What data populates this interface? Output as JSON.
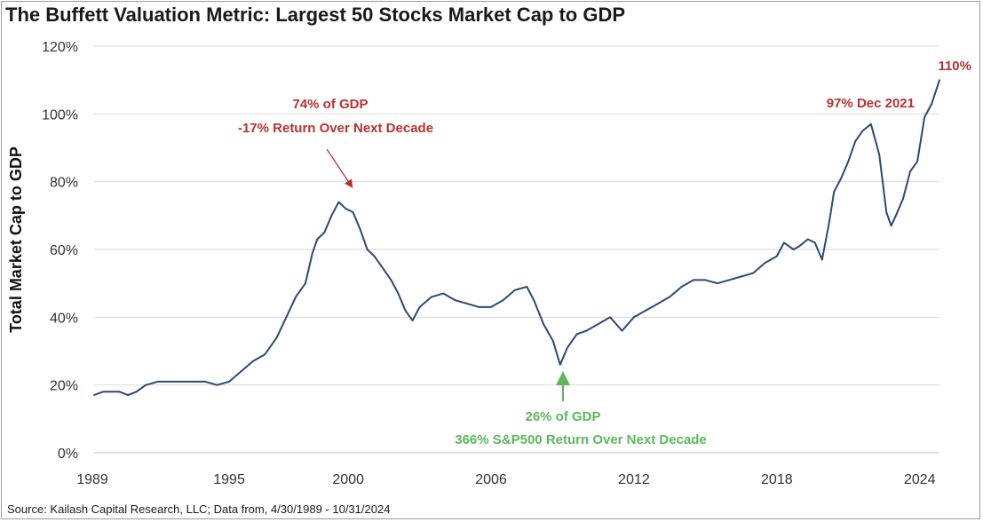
{
  "title": "The Buffett Valuation Metric: Largest 50 Stocks Market Cap to GDP",
  "source": "Source: Kailash Capital Research, LLC; Data from, 4/30/1989 - 10/31/2024",
  "colors": {
    "line": "#2b4a73",
    "red": "#b8312f",
    "green": "#5cb85c",
    "grid": "#d9d9d9"
  },
  "chart_data": {
    "type": "line",
    "title": "The Buffett Valuation Metric: Largest 50 Stocks Market Cap to GDP",
    "xlabel": "",
    "ylabel": "Total Market Cap to GDP",
    "xlim": [
      1989.33,
      2024.83
    ],
    "ylim": [
      0,
      120
    ],
    "x_ticks": [
      1989,
      1995,
      2000,
      2006,
      2012,
      2018,
      2024
    ],
    "x_tick_labels": [
      "1989",
      "1995",
      "2000",
      "2006",
      "2012",
      "2018",
      "2024"
    ],
    "y_ticks": [
      0,
      20,
      40,
      60,
      80,
      100,
      120
    ],
    "y_tick_labels": [
      "0%",
      "20%",
      "40%",
      "60%",
      "80%",
      "100%",
      "120%"
    ],
    "grid": true,
    "series": [
      {
        "name": "Largest 50 Stocks Market Cap to GDP (%)",
        "x": [
          1989.33,
          1989.7,
          1990.0,
          1990.4,
          1990.75,
          1991.1,
          1991.5,
          1992.0,
          1992.5,
          1993.0,
          1993.5,
          1994.0,
          1994.5,
          1995.0,
          1995.5,
          1996.0,
          1996.5,
          1997.0,
          1997.4,
          1997.8,
          1998.2,
          1998.5,
          1998.7,
          1999.0,
          1999.3,
          1999.6,
          1999.9,
          2000.2,
          2000.5,
          2000.8,
          2001.1,
          2001.4,
          2001.8,
          2002.1,
          2002.4,
          2002.7,
          2003.0,
          2003.5,
          2004.0,
          2004.5,
          2005.0,
          2005.5,
          2006.0,
          2006.5,
          2007.0,
          2007.5,
          2007.8,
          2008.2,
          2008.6,
          2008.9,
          2009.2,
          2009.6,
          2010.0,
          2010.5,
          2011.0,
          2011.5,
          2012.0,
          2012.5,
          2013.0,
          2013.5,
          2014.0,
          2014.5,
          2015.0,
          2015.5,
          2016.0,
          2016.5,
          2017.0,
          2017.5,
          2018.0,
          2018.3,
          2018.7,
          2018.95,
          2019.3,
          2019.6,
          2019.9,
          2020.2,
          2020.4,
          2020.7,
          2021.0,
          2021.3,
          2021.6,
          2021.95,
          2022.3,
          2022.6,
          2022.8,
          2023.0,
          2023.3,
          2023.6,
          2023.9,
          2024.2,
          2024.5,
          2024.83
        ],
        "values": [
          17,
          18,
          18,
          18,
          17,
          18,
          20,
          21,
          21,
          21,
          21,
          21,
          20,
          21,
          24,
          27,
          29,
          34,
          40,
          46,
          50,
          59,
          63,
          65,
          70,
          74,
          72,
          71,
          66,
          60,
          58,
          55,
          51,
          47,
          42,
          39,
          43,
          46,
          47,
          45,
          44,
          43,
          43,
          45,
          48,
          49,
          45,
          38,
          33,
          26,
          31,
          35,
          36,
          38,
          40,
          36,
          40,
          42,
          44,
          46,
          49,
          51,
          51,
          50,
          51,
          52,
          53,
          56,
          58,
          62,
          60,
          61,
          63,
          62,
          57,
          68,
          77,
          81,
          86,
          92,
          95,
          97,
          88,
          71,
          67,
          70,
          75,
          83,
          86,
          99,
          103,
          110
        ]
      }
    ],
    "annotations": [
      {
        "text": "74% of GDP",
        "color": "red"
      },
      {
        "text": "-17% Return Over Next Decade",
        "color": "red"
      },
      {
        "text": "26% of GDP",
        "color": "green"
      },
      {
        "text": "366% S&P500 Return Over Next Decade",
        "color": "green"
      },
      {
        "text": "97% Dec 2021",
        "color": "red"
      },
      {
        "text": "110%",
        "color": "red"
      }
    ]
  }
}
